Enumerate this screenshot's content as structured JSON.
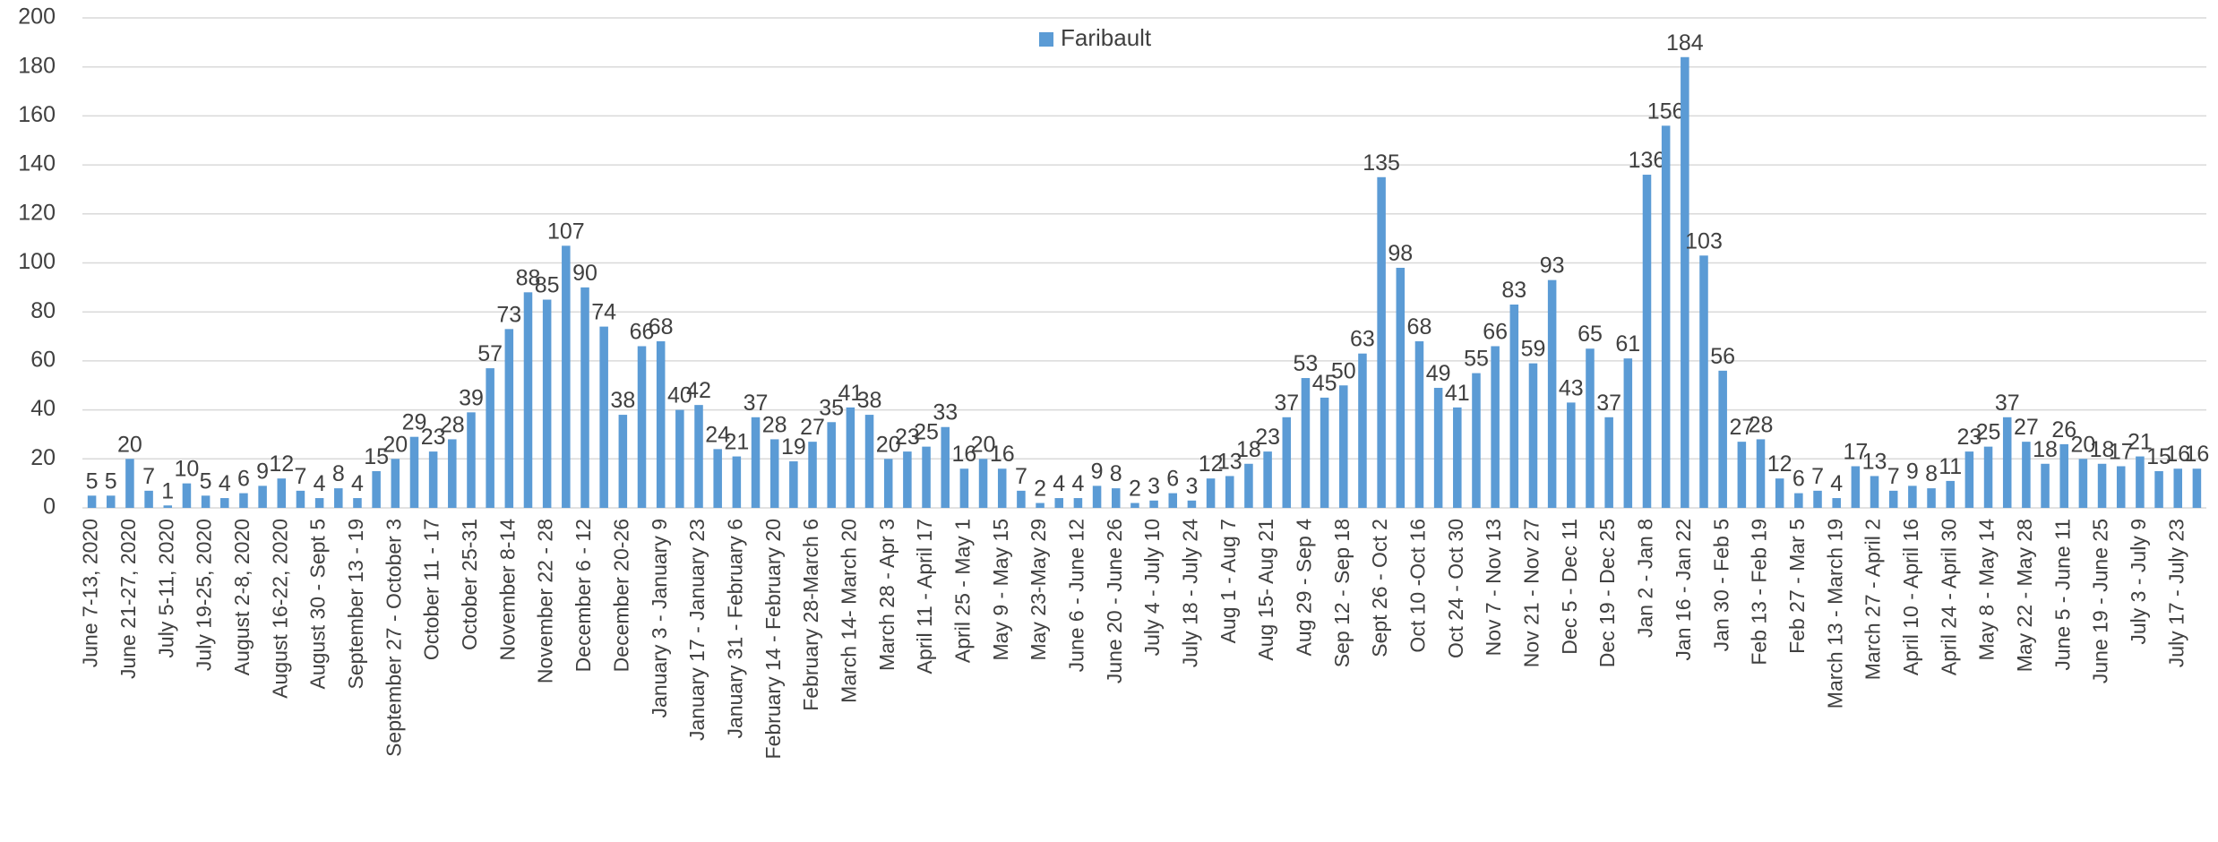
{
  "chart_data": {
    "type": "bar",
    "categories": [
      "June 7-13, 2020",
      null,
      "June 21-27, 2020",
      null,
      "July 5-11, 2020",
      null,
      "July 19-25, 2020",
      null,
      "August 2-8, 2020",
      null,
      "August 16-22, 2020",
      null,
      "August 30 - Sept 5",
      null,
      "September 13 - 19",
      null,
      "September 27 - October 3",
      null,
      "October 11 - 17",
      null,
      "October  25-31",
      null,
      "November 8-14",
      null,
      "November 22 - 28",
      null,
      "December 6 - 12",
      null,
      "December 20-26",
      null,
      "January 3 - January 9",
      null,
      "January 17 - January 23",
      null,
      "January 31 - February 6",
      null,
      "February 14 - February 20",
      null,
      "February 28-March 6",
      null,
      "March 14- March 20",
      null,
      "March 28 - Apr 3",
      null,
      "April 11 - April 17",
      null,
      "April 25 - May 1",
      null,
      "May 9 - May 15",
      null,
      "May 23-May 29",
      null,
      "June 6 - June 12",
      null,
      "June 20 - June 26",
      null,
      "July 4 - July 10",
      null,
      "July 18 - July 24",
      null,
      "Aug 1 - Aug 7",
      null,
      "Aug 15- Aug 21",
      null,
      "Aug 29 - Sep 4",
      null,
      "Sep 12 - Sep 18",
      null,
      "Sept 26 - Oct 2",
      null,
      "Oct 10 -Oct 16",
      null,
      "Oct 24 - Oct 30",
      null,
      "Nov 7 - Nov 13",
      null,
      "Nov 21 - Nov 27",
      null,
      "Dec 5 - Dec 11",
      null,
      "Dec 19 - Dec 25",
      null,
      "Jan 2 - Jan 8",
      null,
      "Jan 16 - Jan 22",
      null,
      "Jan 30 - Feb 5",
      null,
      "Feb 13 - Feb 19",
      null,
      "Feb 27 - Mar 5",
      null,
      "March 13 - March 19",
      null,
      "March 27 - April 2",
      null,
      "April 10 - April 16",
      null,
      "April 24 - April 30",
      null,
      "May 8 - May 14",
      null,
      "May 22 - May 28",
      null,
      "June 5 - June 11",
      null,
      "June 19 - June 25",
      null,
      "July 3 - July 9",
      null,
      "July 17 - July 23",
      null
    ],
    "series": [
      {
        "name": "Faribault",
        "color": "#5b9bd5",
        "values": [
          5,
          5,
          20,
          7,
          1,
          10,
          5,
          4,
          6,
          9,
          12,
          7,
          4,
          8,
          4,
          15,
          20,
          29,
          23,
          28,
          39,
          57,
          73,
          88,
          85,
          107,
          90,
          74,
          38,
          66,
          68,
          40,
          42,
          24,
          21,
          37,
          28,
          19,
          27,
          35,
          41,
          38,
          20,
          23,
          25,
          33,
          16,
          20,
          16,
          7,
          2,
          4,
          4,
          9,
          8,
          2,
          3,
          6,
          3,
          12,
          13,
          18,
          23,
          37,
          53,
          45,
          50,
          63,
          135,
          98,
          68,
          49,
          41,
          55,
          66,
          83,
          59,
          93,
          43,
          65,
          37,
          61,
          136,
          156,
          184,
          103,
          56,
          27,
          28,
          12,
          6,
          7,
          4,
          17,
          13,
          7,
          9,
          8,
          11,
          23,
          25,
          37,
          27,
          18,
          26,
          20,
          18,
          17,
          21,
          15,
          16,
          16
        ]
      }
    ],
    "ylim": [
      0,
      200
    ],
    "yticks": [
      0,
      20,
      40,
      60,
      80,
      100,
      120,
      140,
      160,
      180,
      200
    ],
    "grid": true,
    "legend": "top"
  }
}
